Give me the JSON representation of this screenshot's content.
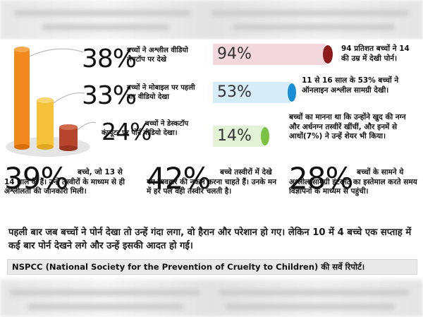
{
  "left_stats": [
    {
      "pct": "38%",
      "text": "बच्चों ने अश्लील वीडियो लैपटॉप पर देखे"
    },
    {
      "pct": "33%",
      "text": "बच्चों ने मोबाइल पर पहली बार वीडियो देखा"
    },
    {
      "pct": "24%",
      "text": "बच्चों ने डेस्कटॉप कंप्यूटर पर पोर्न वीडियो देखा।"
    }
  ],
  "right_stats": [
    {
      "pct": "94%",
      "text": "94 प्रतिशत बच्चों ने 14 की उम्र में देखी पोर्न।",
      "color": "#8e1b1b"
    },
    {
      "pct": "53%",
      "text": "11 से 16 साल के 53% बच्चों ने ऑनलाइन अश्लील सामग्री देखी।",
      "color": "#1a8fd6"
    },
    {
      "pct": "14%",
      "text": "बच्चों का मानना था कि उन्होंने खुद की नग्न और अर्धनग्न तस्वीरें खींचीं, और इनमें से आधों(7%) ने उन्हें शेयर भी किया।",
      "color": "#7cc242"
    }
  ],
  "bottom_stats": [
    {
      "pct": "39%",
      "text": "बच्चे, जो 13 से 14 साल के हैं। उन्हें तस्वीरों के माध्यम से ही अश्लीलता की जानकारी मिली।"
    },
    {
      "pct": "42%",
      "text": "बच्चे तस्वीरों में देखे गए व्यवहार की नकल करना चाहते हैं। उनके मन में हर पल वही तस्वीर चलती है।"
    },
    {
      "pct": "28%",
      "text": "बच्चों के सामने ये अश्लील सामग्री इंटरनेट का इस्तेमाल करते समय विज्ञापनों के माध्यम से पहुंची।"
    }
  ],
  "paragraph": "पहली बार जब बच्चों ने पोर्न देखा तो उन्हें गंदा लगा, वो हैरान और परेशान हो गए। लेकिन 10 में 4 बच्चे एक सप्ताह में कई बार पोर्न देखने लगे और उन्हें इसकी आदत हो गई।",
  "source": "NSPCC (National Society for the Prevention of Cruelty to Children) की सर्वे रिपोर्ट।",
  "colors": {
    "cylinder_orange": "#f08a1c",
    "cylinder_yellow": "#f5c23a",
    "cylinder_red": "#b5452c",
    "bar_pink": "#f2d8dc",
    "bar_blue": "#d6ecf8",
    "bar_green": "#e1f2d6"
  }
}
